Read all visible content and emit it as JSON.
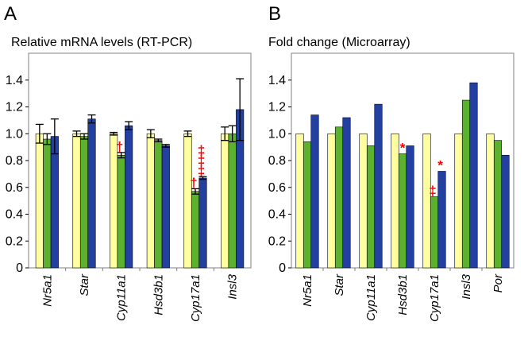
{
  "colors": {
    "yellow": "#ffffa0",
    "green": "#5cb22e",
    "blue": "#2340a0",
    "significance": "#ff0000"
  },
  "chart_data": [
    {
      "type": "bar",
      "panel_letter": "A",
      "title": "Relative mRNA levels (RT-PCR)",
      "xlabel": "",
      "ylabel": "",
      "ylim": [
        0,
        1.6
      ],
      "yticks": [
        "0",
        "0.2",
        "0.4",
        "0.6",
        "0.8",
        "1.0",
        "1.2",
        "1.4"
      ],
      "grid": false,
      "legend": "none",
      "categories": [
        "Nr5a1",
        "Star",
        "Cyp11a1",
        "Hsd3b1",
        "Cyp17a1",
        "Insl3"
      ],
      "series": [
        {
          "color": "yellow",
          "values": [
            1.0,
            1.0,
            1.0,
            1.0,
            1.0,
            1.0
          ],
          "errors": [
            0.07,
            0.02,
            0.01,
            0.03,
            0.02,
            0.05
          ]
        },
        {
          "color": "green",
          "values": [
            0.96,
            0.98,
            0.84,
            0.95,
            0.57,
            1.0
          ],
          "errors": [
            0.04,
            0.02,
            0.02,
            0.01,
            0.02,
            0.06
          ]
        },
        {
          "color": "blue",
          "values": [
            0.98,
            1.11,
            1.06,
            0.91,
            0.67,
            1.18
          ],
          "errors": [
            0.13,
            0.03,
            0.03,
            0.01,
            0.01,
            0.23
          ]
        }
      ],
      "annotations": [
        {
          "category": "Cyp11a1",
          "series": 1,
          "text": "†"
        },
        {
          "category": "Cyp17a1",
          "series": 1,
          "text": "†"
        },
        {
          "category": "Cyp17a1",
          "series": 2,
          "text": "‡"
        },
        {
          "category": "Cyp17a1",
          "series": 2,
          "text": "‡"
        },
        {
          "category": "Cyp17a1",
          "series": 2,
          "text": "‡"
        }
      ]
    },
    {
      "type": "bar",
      "panel_letter": "B",
      "title": "Fold change (Microarray)",
      "xlabel": "",
      "ylabel": "",
      "ylim": [
        0,
        1.6
      ],
      "yticks": [
        "0",
        "0.2",
        "0.4",
        "0.6",
        "0.8",
        "1.0",
        "1.2",
        "1.4"
      ],
      "grid": false,
      "legend": "none",
      "categories": [
        "Nr5a1",
        "Star",
        "Cyp11a1",
        "Hsd3b1",
        "Cyp17a1",
        "Insl3",
        "Por"
      ],
      "series": [
        {
          "color": "yellow",
          "values": [
            1.0,
            1.0,
            1.0,
            1.0,
            1.0,
            1.0,
            1.0
          ]
        },
        {
          "color": "green",
          "values": [
            0.94,
            1.05,
            0.91,
            0.85,
            0.53,
            1.25,
            0.95
          ]
        },
        {
          "color": "blue",
          "values": [
            1.14,
            1.12,
            1.22,
            0.91,
            0.72,
            1.38,
            0.84
          ]
        }
      ],
      "annotations": [
        {
          "category": "Hsd3b1",
          "series": 1,
          "text": "*"
        },
        {
          "category": "Cyp17a1",
          "series": 1,
          "text": "‡"
        },
        {
          "category": "Cyp17a1",
          "series": 2,
          "text": "*"
        }
      ]
    }
  ]
}
